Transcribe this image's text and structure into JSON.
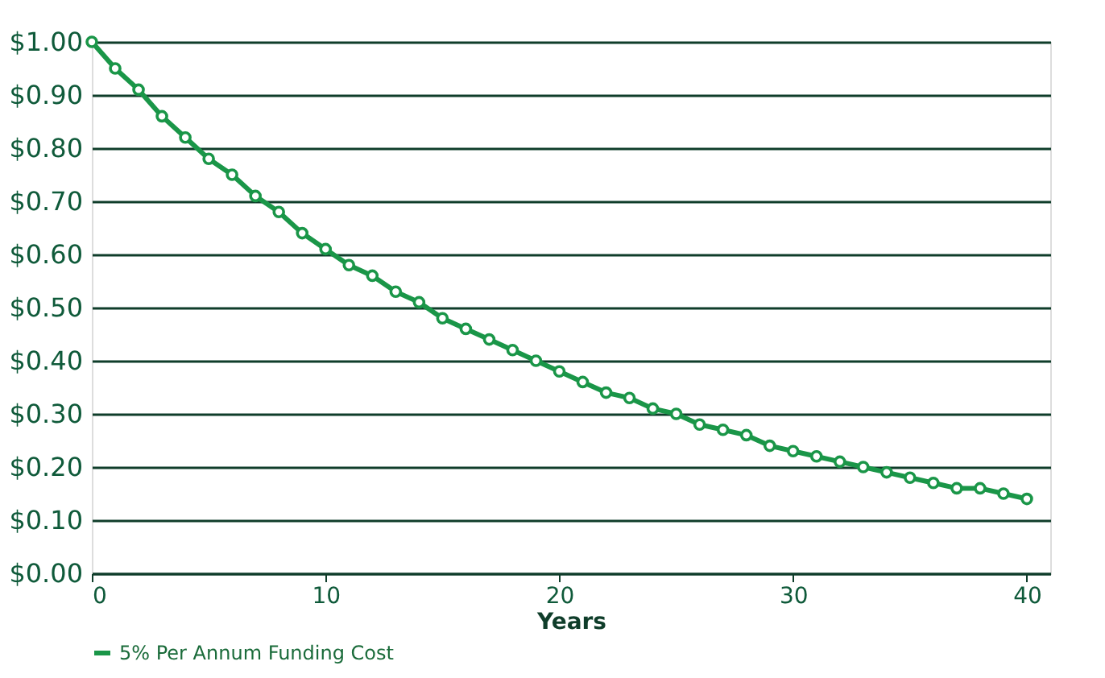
{
  "chart_data": {
    "type": "line",
    "xlabel": "Years",
    "x": [
      0,
      1,
      2,
      3,
      4,
      5,
      6,
      7,
      8,
      9,
      10,
      11,
      12,
      13,
      14,
      15,
      16,
      17,
      18,
      19,
      20,
      21,
      22,
      23,
      24,
      25,
      26,
      27,
      28,
      29,
      30,
      31,
      32,
      33,
      34,
      35,
      36,
      37,
      38,
      39,
      40
    ],
    "series": [
      {
        "name": "5% Per Annum Funding Cost",
        "color": "#1a9648",
        "values": [
          1.0,
          0.95,
          0.91,
          0.86,
          0.82,
          0.78,
          0.75,
          0.71,
          0.68,
          0.64,
          0.61,
          0.58,
          0.56,
          0.53,
          0.51,
          0.48,
          0.46,
          0.44,
          0.42,
          0.4,
          0.38,
          0.36,
          0.34,
          0.33,
          0.31,
          0.3,
          0.28,
          0.27,
          0.26,
          0.24,
          0.23,
          0.22,
          0.21,
          0.2,
          0.19,
          0.18,
          0.17,
          0.16,
          0.16,
          0.15,
          0.14
        ]
      }
    ],
    "xlim": [
      0,
      41
    ],
    "xticks": [
      0,
      10,
      20,
      30,
      40
    ],
    "ylim": [
      0,
      1
    ],
    "yticks": [
      {
        "value": 0,
        "label": "$0.00"
      },
      {
        "value": 0.1,
        "label": "$0.10"
      },
      {
        "value": 0.2,
        "label": "$0.20"
      },
      {
        "value": 0.3,
        "label": "$0.30"
      },
      {
        "value": 0.4,
        "label": "$0.40"
      },
      {
        "value": 0.5,
        "label": "$0.50"
      },
      {
        "value": 0.6,
        "label": "$0.60"
      },
      {
        "value": 0.7,
        "label": "$0.70"
      },
      {
        "value": 0.8,
        "label": "$0.80"
      },
      {
        "value": 0.9,
        "label": "$0.90"
      },
      {
        "value": 1.0,
        "label": "$1.00"
      }
    ],
    "grid": "y",
    "legend": "bottom left",
    "marker": "circle",
    "line_style": "solid"
  }
}
